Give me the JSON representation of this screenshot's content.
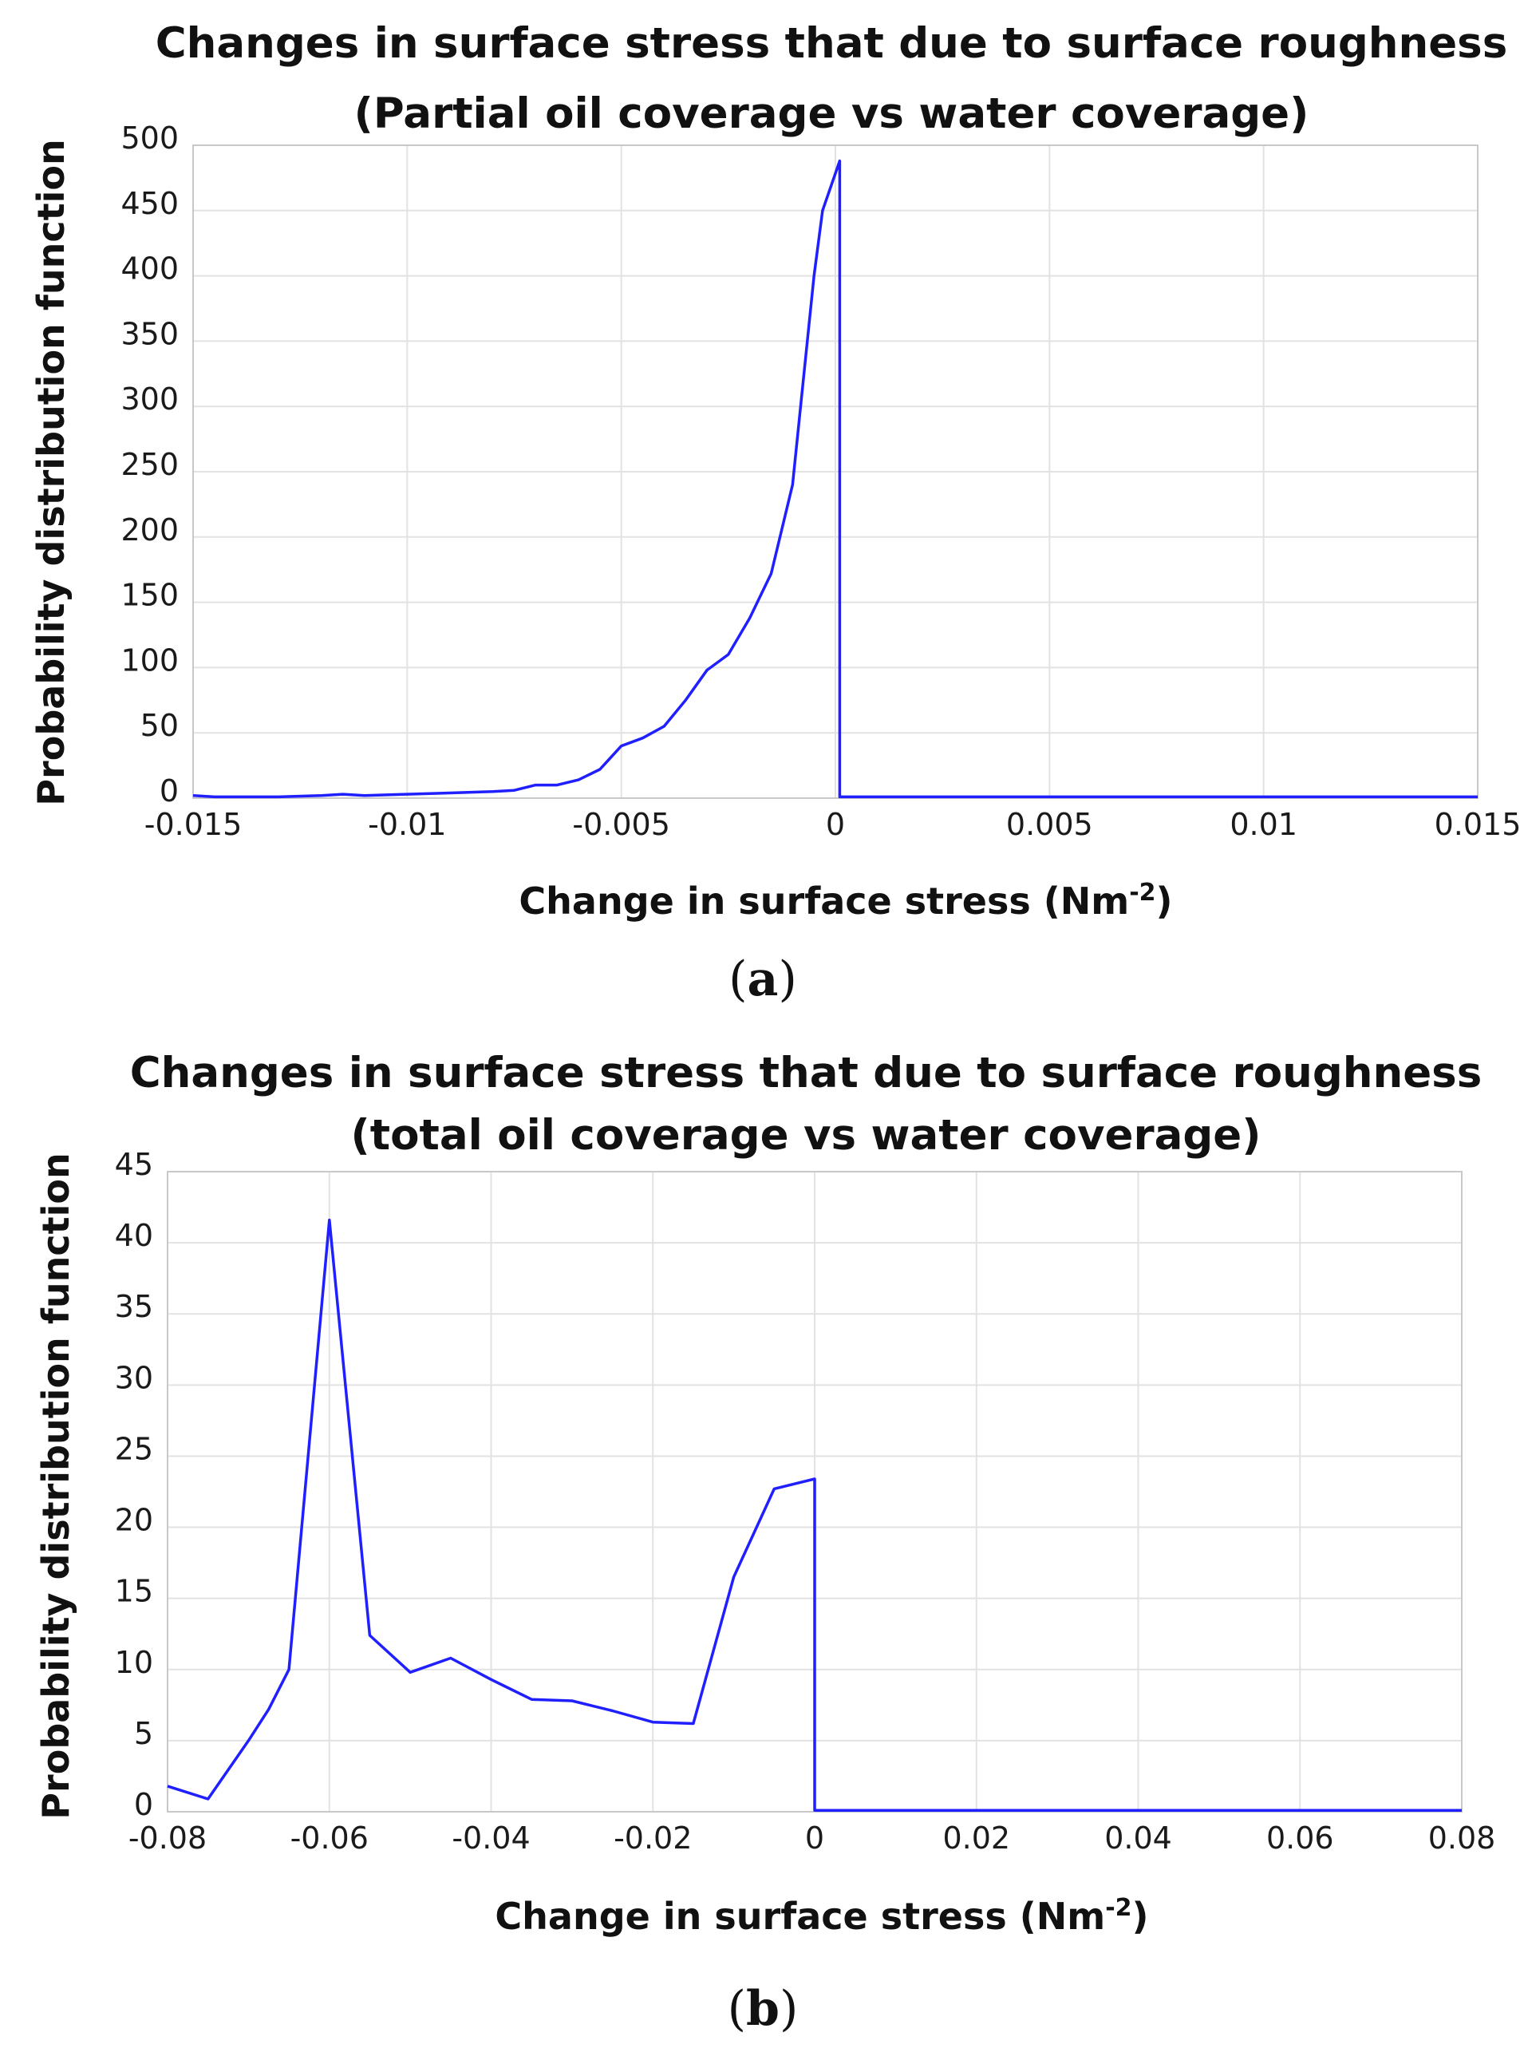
{
  "chart_data": [
    {
      "type": "line",
      "title": "Changes in surface stress that due to surface roughness",
      "subtitle": "(Partial oil coverage vs water coverage)",
      "xlabel": "Change in surface stress (Nm",
      "xlabel_sup": "-2",
      "xlabel_end": ")",
      "ylabel": "Probability distribution function",
      "panel_label": "a",
      "xlim": [
        -0.015,
        0.015
      ],
      "ylim": [
        0,
        500
      ],
      "xticks": [
        -0.015,
        -0.01,
        -0.005,
        0,
        0.005,
        0.01,
        0.015
      ],
      "xtick_labels": [
        "-0.015",
        "-0.01",
        "-0.005",
        "0",
        "0.005",
        "0.01",
        "0.015"
      ],
      "yticks": [
        0,
        50,
        100,
        150,
        200,
        250,
        300,
        350,
        400,
        450,
        500
      ],
      "ytick_labels": [
        "0",
        "50",
        "100",
        "150",
        "200",
        "250",
        "300",
        "350",
        "400",
        "450",
        "500"
      ],
      "grid": true,
      "series": [
        {
          "name": "PDF",
          "color": "#1f1fff",
          "x": [
            -0.015,
            -0.0145,
            -0.014,
            -0.013,
            -0.012,
            -0.0115,
            -0.011,
            -0.01,
            -0.009,
            -0.008,
            -0.0075,
            -0.007,
            -0.0065,
            -0.006,
            -0.0055,
            -0.005,
            -0.0045,
            -0.004,
            -0.0035,
            -0.003,
            -0.0025,
            -0.002,
            -0.0015,
            -0.001,
            -0.0005,
            -0.0003,
            0.0001,
            0.0001,
            0.0005,
            0.015
          ],
          "y": [
            2,
            1,
            1,
            1,
            2,
            3,
            2,
            3,
            4,
            5,
            6,
            10,
            10,
            14,
            22,
            40,
            46,
            55,
            75,
            98,
            110,
            138,
            172,
            240,
            400,
            450,
            488,
            1,
            1,
            1
          ]
        }
      ]
    },
    {
      "type": "line",
      "title": "Changes in surface stress that due to surface roughness",
      "subtitle": "(total oil coverage vs water coverage)",
      "xlabel": "Change in surface stress (Nm",
      "xlabel_sup": "-2",
      "xlabel_end": ")",
      "ylabel": "Probability distribution function",
      "panel_label": "b",
      "xlim": [
        -0.08,
        0.08
      ],
      "ylim": [
        0,
        45
      ],
      "xticks": [
        -0.08,
        -0.06,
        -0.04,
        -0.02,
        0,
        0.02,
        0.04,
        0.06,
        0.08
      ],
      "xtick_labels": [
        "-0.08",
        "-0.06",
        "-0.04",
        "-0.02",
        "0",
        "0.02",
        "0.04",
        "0.06",
        "0.08"
      ],
      "yticks": [
        0,
        5,
        10,
        15,
        20,
        25,
        30,
        35,
        40,
        45
      ],
      "ytick_labels": [
        "0",
        "5",
        "10",
        "15",
        "20",
        "25",
        "30",
        "35",
        "40",
        "45"
      ],
      "grid": true,
      "series": [
        {
          "name": "PDF",
          "color": "#1f1fff",
          "x": [
            -0.08,
            -0.075,
            -0.07,
            -0.0675,
            -0.065,
            -0.06,
            -0.055,
            -0.05,
            -0.045,
            -0.04,
            -0.035,
            -0.03,
            -0.025,
            -0.02,
            -0.015,
            -0.01,
            -0.005,
            0,
            0,
            0.08
          ],
          "y": [
            1.8,
            0.9,
            5,
            7.2,
            10,
            41.6,
            12.4,
            9.8,
            10.8,
            9.3,
            7.9,
            7.8,
            7.1,
            6.3,
            6.2,
            16.5,
            22.7,
            23.4,
            0.1,
            0.1
          ]
        }
      ]
    }
  ]
}
